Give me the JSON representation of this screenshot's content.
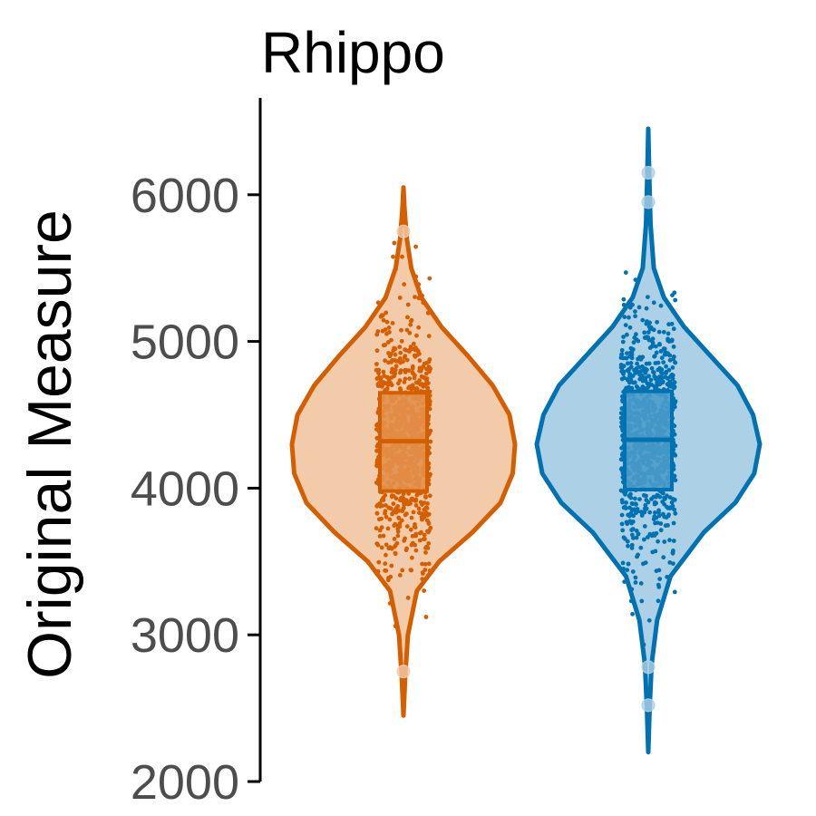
{
  "chart_data": {
    "type": "violin",
    "title": "Rhippo",
    "ylabel": "Original Measure",
    "xlabel": "",
    "ylim": [
      2000,
      6600
    ],
    "yticks": [
      "2000",
      "3000",
      "4000",
      "5000",
      "6000"
    ],
    "grid": false,
    "legend": "none",
    "groups": [
      {
        "color": "#d55e00",
        "fill": "#f2ccaa",
        "box_fill": "#e2904d",
        "median": 4320,
        "q1": 3980,
        "q3": 4650,
        "min": 2450,
        "max": 6050,
        "point_range": [
          2750,
          5750
        ],
        "outliers": [
          5750,
          2750
        ],
        "density": [
          [
            2450,
            0.0
          ],
          [
            2700,
            0.015
          ],
          [
            3000,
            0.04
          ],
          [
            3300,
            0.12
          ],
          [
            3500,
            0.32
          ],
          [
            3700,
            0.62
          ],
          [
            3900,
            0.87
          ],
          [
            4100,
            0.98
          ],
          [
            4300,
            1.0
          ],
          [
            4500,
            0.95
          ],
          [
            4700,
            0.8
          ],
          [
            4900,
            0.58
          ],
          [
            5100,
            0.34
          ],
          [
            5300,
            0.16
          ],
          [
            5500,
            0.07
          ],
          [
            5700,
            0.03
          ],
          [
            5900,
            0.01
          ],
          [
            6050,
            0.0
          ]
        ]
      },
      {
        "color": "#0072b2",
        "fill": "#acd1e6",
        "box_fill": "#4a9bc9",
        "median": 4330,
        "q1": 3990,
        "q3": 4660,
        "min": 2200,
        "max": 6450,
        "point_range": [
          2500,
          6150
        ],
        "outliers": [
          6150,
          5950,
          2780,
          2520
        ],
        "density": [
          [
            2200,
            0.0
          ],
          [
            2500,
            0.012
          ],
          [
            2800,
            0.03
          ],
          [
            3100,
            0.08
          ],
          [
            3400,
            0.2
          ],
          [
            3700,
            0.5
          ],
          [
            3900,
            0.78
          ],
          [
            4100,
            0.95
          ],
          [
            4300,
            1.0
          ],
          [
            4500,
            0.94
          ],
          [
            4700,
            0.8
          ],
          [
            4900,
            0.56
          ],
          [
            5100,
            0.32
          ],
          [
            5300,
            0.14
          ],
          [
            5500,
            0.05
          ],
          [
            5800,
            0.02
          ],
          [
            6100,
            0.01
          ],
          [
            6450,
            0.0
          ]
        ]
      }
    ]
  }
}
